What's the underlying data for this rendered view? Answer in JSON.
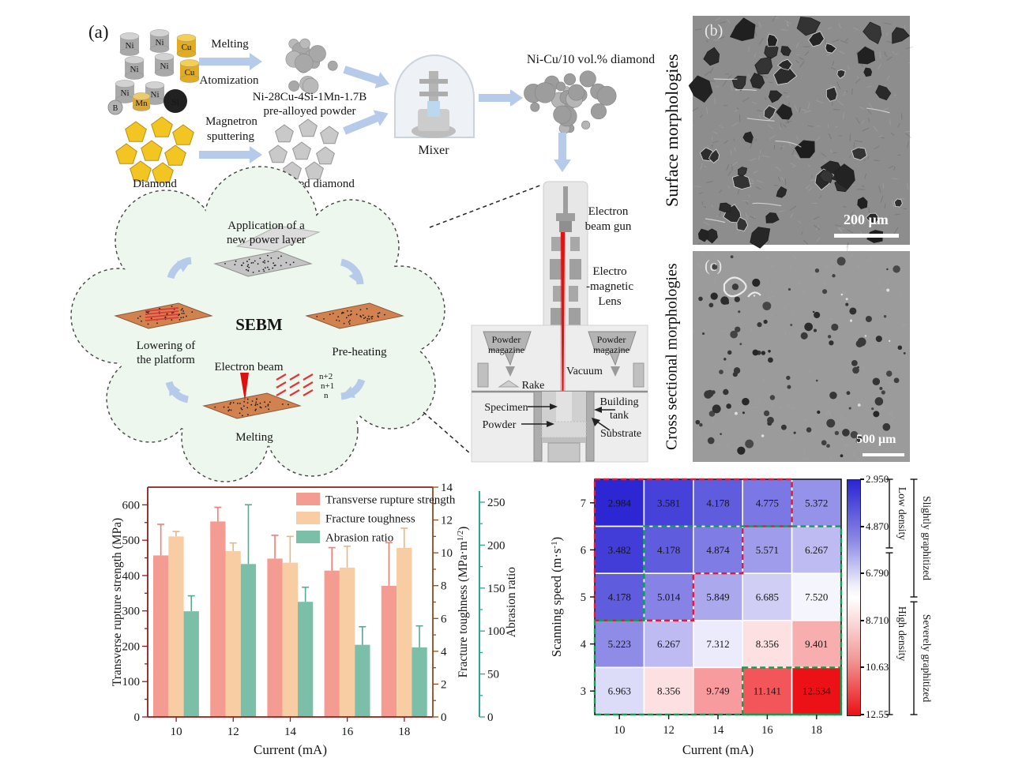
{
  "panel_a": {
    "label": "(a)",
    "element_labels": {
      "ni": "Ni",
      "cu": "Cu",
      "b": "B",
      "mn": "Mn",
      "si": "Si"
    },
    "flow": {
      "melting": "Melting",
      "atomization": "Atomization",
      "powder_name_1": "Ni-28Cu-4Si-1Mn-1.7B",
      "powder_name_2": "pre-alloyed powder",
      "magnetron_1": "Magnetron",
      "magnetron_2": "sputtering",
      "diamond": "Diamond",
      "w_coated": "W-coated diamond",
      "mixer": "Mixer",
      "mixture": "Ni-Cu/10 vol.% diamond"
    },
    "sebm": {
      "title": "SEBM",
      "step_top_1": "Application of a",
      "step_top_2": "new power layer",
      "step_right": "Pre-heating",
      "step_bottom": "Melting",
      "step_left_1": "Lowering of",
      "step_left_2": "the platform",
      "electron_beam": "Electron beam",
      "layers": [
        "n+2",
        "n+1",
        "n"
      ]
    },
    "machine": {
      "gun_1": "Electron",
      "gun_2": "beam gun",
      "lens_1": "Electro",
      "lens_2": "-magnetic",
      "lens_3": "Lens",
      "magazine_1": "Powder",
      "magazine_2": "magazine",
      "vacuum": "Vacuum",
      "rake": "Rake",
      "specimen": "Specimen",
      "tank_1": "Building",
      "tank_2": "tank",
      "powder": "Powder",
      "substrate": "Substrate"
    }
  },
  "panel_b": {
    "label": "(b)",
    "title": "Surface morphologies",
    "scale": "200 μm"
  },
  "panel_c": {
    "label": "(c)",
    "title": "Cross sectional morphologies",
    "scale": "500 μm"
  },
  "chart_data": [
    {
      "type": "bar",
      "title": "",
      "categories": [
        10,
        12,
        14,
        16,
        18
      ],
      "xlabel": "Current (mA)",
      "axes": {
        "left": {
          "label": "Transverse rupture strength (MPa)",
          "range": [
            0,
            650
          ],
          "ticks": [
            0,
            100,
            200,
            300,
            400,
            500,
            600
          ],
          "color": "#8a1f1f"
        },
        "right1": {
          "label_pre": "Fracture toughness (MPa·m",
          "label_sup": "1/2",
          "label_post": ")",
          "range": [
            0,
            14
          ],
          "ticks": [
            0,
            2,
            4,
            6,
            8,
            10,
            12,
            14
          ],
          "color": "#8a4b20"
        },
        "right2": {
          "label": "Abrasion ratio",
          "range": [
            0,
            250
          ],
          "ticks": [
            0,
            50,
            100,
            150,
            200,
            250
          ],
          "color": "#2fa491"
        }
      },
      "series": [
        {
          "name": "Transverse rupture strength",
          "axis": "left",
          "color": "#f59c92",
          "err_color": "#ee7f76",
          "text_color": "#9b1d2e",
          "values": [
            457,
            553,
            448,
            414,
            371
          ],
          "errors": [
            88,
            40,
            66,
            65,
            122
          ]
        },
        {
          "name": "Fracture toughness",
          "axis": "right1",
          "color": "#f8cda3",
          "err_color": "#ecb57e",
          "text_color": "#8a4b20",
          "values": [
            11.0,
            10.1,
            9.4,
            9.1,
            10.3
          ],
          "errors": [
            0.3,
            0.5,
            1.6,
            1.3,
            1.2
          ]
        },
        {
          "name": "Abrasion ratio",
          "axis": "right2",
          "color": "#7cbfa9",
          "err_color": "#5aa890",
          "text_color": "#2fa491",
          "values": [
            123,
            178,
            134,
            84,
            81
          ],
          "errors": [
            18,
            69,
            17,
            21,
            25
          ]
        }
      ],
      "legend_position": "top-right",
      "grid": false
    },
    {
      "type": "heatmap",
      "x": [
        10,
        12,
        14,
        16,
        18
      ],
      "y": [
        7,
        6,
        5,
        4,
        3
      ],
      "xlabel": "Current (mA)",
      "ylabel_pre": "Scanning speed (m·s",
      "ylabel_sup": "-1",
      "ylabel_post": ")",
      "values": [
        [
          "2.984",
          "3.581",
          "4.178",
          "4.775",
          "5.372"
        ],
        [
          "3.482",
          "4.178",
          "4.874",
          "5.571",
          "6.267"
        ],
        [
          "4.178",
          "5.014",
          "5.849",
          "6.685",
          "7.520"
        ],
        [
          "5.223",
          "6.267",
          "7.312",
          "8.356",
          "9.401"
        ],
        [
          "6.963",
          "8.356",
          "9.749",
          "11.141",
          "12.534"
        ]
      ],
      "colorbar": {
        "ticks": [
          "2.950",
          "4.870",
          "6.790",
          "8.710",
          "10.63",
          "12.55"
        ],
        "min": 2.95,
        "max": 12.55,
        "low_color": "#2a24d3",
        "mid_color": "#ffffff",
        "high_color": "#ec1016"
      },
      "regions": [
        {
          "name": "low-density-boundary",
          "style": "red-dashed",
          "color": "#e8192c"
        },
        {
          "name": "high-density-boundary",
          "style": "green-dashed",
          "color": "#0ea04e"
        }
      ],
      "annotations": {
        "density": [
          {
            "label": "Low density",
            "from": 2.95,
            "to": 5.75
          },
          {
            "label": "High density",
            "from": 5.95,
            "to": 12.55
          }
        ],
        "graphitization": [
          {
            "label": "Slightly graphitized",
            "from": 2.95,
            "to": 7.75
          },
          {
            "label": "Severely graphitized",
            "from": 7.95,
            "to": 12.55
          }
        ]
      }
    }
  ]
}
